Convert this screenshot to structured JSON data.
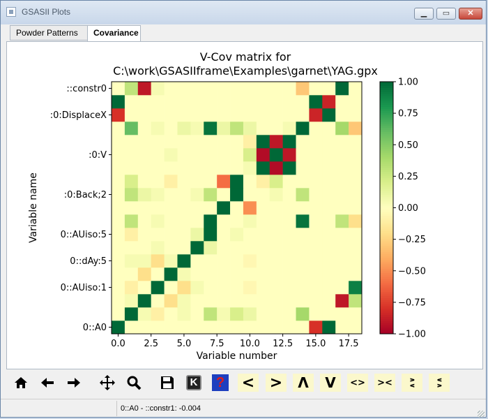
{
  "window": {
    "title": "GSASII Plots"
  },
  "tabs": [
    "Powder Patterns",
    "Covariance"
  ],
  "plot": {
    "title_line1": "V-Cov matrix for",
    "title_line2": "C:\\work\\GSASIIframe\\Examples\\garnet\\YAG.gpx",
    "xlabel": "Variable number",
    "ylabel": "Variable name"
  },
  "chart_data": {
    "type": "heatmap",
    "n": 19,
    "colormap": "RdYlGn",
    "vmin": -1.0,
    "vmax": 1.0,
    "xticks": [
      "0.0",
      "2.5",
      "5.0",
      "7.5",
      "10.0",
      "12.5",
      "15.0",
      "17.5"
    ],
    "xtick_values": [
      0,
      2.5,
      5,
      7.5,
      10,
      12.5,
      15,
      17.5
    ],
    "yticks": [
      "::constr0",
      ":0:DisplaceX",
      ":0:V",
      ":0:Back;2",
      "0::AUiso:5",
      "0::dAy:5",
      "0::AUiso:1",
      "0::A0"
    ],
    "ytick_rows": [
      18,
      16,
      13,
      10,
      7,
      5,
      3,
      0
    ],
    "colorbar_ticks": [
      "1.00",
      "0.75",
      "0.50",
      "0.25",
      "0.00",
      "−0.25",
      "−0.50",
      "−0.75",
      "−1.00"
    ],
    "colorbar_values": [
      1,
      0.75,
      0.5,
      0.25,
      0,
      -0.25,
      -0.5,
      -0.75,
      -1
    ],
    "matrix": [
      [
        1.0,
        0.0,
        0.0,
        0.0,
        0.0,
        0.0,
        0.0,
        0.0,
        0.0,
        0.0,
        0.0,
        0.0,
        0.0,
        0.0,
        0.0,
        -0.8,
        1.0,
        0.0,
        0.0
      ],
      [
        0.0,
        1.0,
        0.05,
        -0.1,
        0.0,
        0.05,
        0.0,
        0.3,
        0.05,
        0.2,
        0.1,
        0.0,
        0.0,
        0.0,
        0.4,
        0.0,
        0.0,
        0.0,
        0.0
      ],
      [
        0.0,
        0.05,
        1.0,
        0.0,
        -0.2,
        0.05,
        0.0,
        0.0,
        0.0,
        0.0,
        0.0,
        0.0,
        0.0,
        0.0,
        0.0,
        0.0,
        0.0,
        -0.9,
        0.3
      ],
      [
        0.0,
        -0.1,
        0.0,
        1.0,
        0.0,
        -0.2,
        0.05,
        0.0,
        0.0,
        0.0,
        -0.05,
        0.0,
        0.0,
        0.0,
        0.0,
        0.0,
        0.0,
        0.0,
        0.9
      ],
      [
        0.0,
        0.0,
        -0.2,
        0.0,
        1.0,
        0.05,
        0.0,
        0.0,
        0.0,
        0.0,
        0.0,
        0.0,
        0.0,
        0.0,
        0.0,
        0.0,
        0.0,
        0.0,
        0.0
      ],
      [
        0.0,
        0.05,
        0.05,
        -0.2,
        0.05,
        1.0,
        0.0,
        0.0,
        0.0,
        0.0,
        -0.05,
        0.0,
        0.0,
        0.0,
        0.0,
        0.0,
        0.0,
        0.0,
        0.0
      ],
      [
        0.0,
        0.0,
        0.0,
        0.05,
        0.0,
        0.0,
        1.0,
        0.1,
        0.0,
        0.0,
        0.0,
        0.0,
        0.0,
        0.0,
        0.0,
        0.0,
        0.0,
        0.0,
        0.0
      ],
      [
        0.0,
        -0.1,
        0.0,
        0.0,
        0.0,
        0.0,
        0.1,
        1.0,
        0.0,
        0.05,
        0.0,
        0.0,
        0.0,
        0.0,
        0.0,
        0.0,
        0.0,
        0.0,
        0.0
      ],
      [
        0.0,
        0.3,
        0.0,
        0.05,
        0.0,
        0.0,
        0.0,
        1.0,
        0.0,
        0.0,
        0.05,
        0.0,
        0.0,
        0.0,
        0.95,
        0.0,
        0.0,
        0.3,
        -0.2
      ],
      [
        0.0,
        0.0,
        0.0,
        0.0,
        0.0,
        0.0,
        0.0,
        0.0,
        1.0,
        0.0,
        -0.5,
        0.0,
        0.0,
        0.0,
        0.0,
        0.0,
        0.0,
        0.0,
        0.0
      ],
      [
        0.0,
        0.3,
        0.1,
        0.05,
        0.0,
        0.0,
        0.05,
        0.3,
        0.0,
        1.0,
        0.0,
        0.0,
        0.05,
        0.0,
        0.3,
        0.0,
        0.0,
        0.0,
        0.0
      ],
      [
        0.0,
        0.2,
        0.0,
        0.0,
        -0.1,
        0.0,
        0.0,
        0.0,
        -0.6,
        1.0,
        0.0,
        -0.1,
        0.2,
        0.0,
        0.0,
        0.0,
        0.0,
        0.0,
        0.0
      ],
      [
        0.0,
        0.0,
        0.0,
        0.0,
        0.0,
        0.0,
        0.0,
        0.0,
        0.0,
        0.0,
        0.05,
        1.0,
        -0.95,
        1.0,
        0.0,
        0.0,
        0.0,
        0.0,
        0.0
      ],
      [
        0.0,
        0.0,
        0.0,
        0.0,
        0.05,
        0.0,
        0.0,
        0.0,
        0.0,
        0.0,
        0.2,
        -0.95,
        1.0,
        -0.9,
        0.0,
        0.0,
        0.0,
        0.0,
        0.0
      ],
      [
        0.0,
        0.0,
        0.0,
        0.0,
        0.0,
        0.0,
        0.0,
        0.0,
        0.0,
        0.0,
        -0.1,
        1.0,
        -0.9,
        1.0,
        0.0,
        0.0,
        0.0,
        0.0,
        0.0
      ],
      [
        0.0,
        0.6,
        0.0,
        0.05,
        0.0,
        0.1,
        0.05,
        0.95,
        0.1,
        0.3,
        0.1,
        0.0,
        0.0,
        0.05,
        1.0,
        0.0,
        0.0,
        0.4,
        -0.3
      ],
      [
        -0.8,
        0.0,
        0.0,
        0.0,
        0.0,
        0.0,
        0.0,
        0.0,
        0.0,
        0.0,
        0.0,
        0.0,
        0.0,
        0.0,
        0.0,
        -0.85,
        1.0,
        0.0,
        0.0
      ],
      [
        1.0,
        0.0,
        0.0,
        0.0,
        0.0,
        0.0,
        0.0,
        0.0,
        0.0,
        0.0,
        0.0,
        0.0,
        0.0,
        0.0,
        0.0,
        1.0,
        -0.85,
        0.0,
        0.0
      ],
      [
        0.0,
        0.3,
        -0.9,
        0.05,
        0.0,
        0.0,
        0.0,
        0.0,
        0.0,
        0.0,
        0.0,
        0.0,
        0.0,
        0.0,
        -0.3,
        0.0,
        0.0,
        1.0,
        0.0
      ]
    ]
  },
  "toolbar": {
    "home_icon": "home-icon",
    "back_icon": "arrow-left-icon",
    "forward_icon": "arrow-right-icon",
    "pan_icon": "move-icon",
    "zoom_icon": "magnifier-icon",
    "save_icon": "floppy-icon",
    "key_label": "K",
    "help_label": "?",
    "left_label": "<",
    "right_label": ">",
    "up_label": "Λ",
    "down_label": "V",
    "expand_h_label": "<>",
    "contract_h_label": "><",
    "expand_v_label": "∧∨",
    "contract_v_label": "∨∧"
  },
  "status": {
    "text": "0::A0 - ::constr1: -0.004"
  }
}
